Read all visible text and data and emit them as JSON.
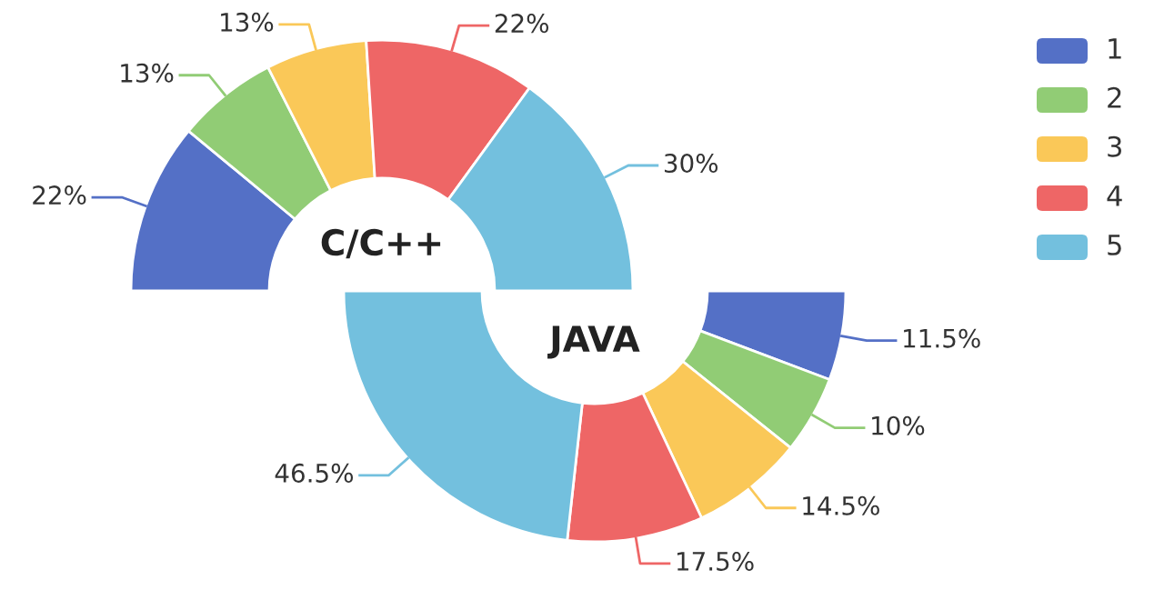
{
  "chart_data": [
    {
      "type": "donut",
      "title": "C/C++",
      "categories": [
        "1",
        "2",
        "3",
        "4",
        "5"
      ],
      "values": [
        22,
        13,
        13,
        22,
        30
      ],
      "value_labels": [
        "22%",
        "13%",
        "13%",
        "22%",
        "30%"
      ],
      "colors": [
        "#5470c6",
        "#91cc75",
        "#fac858",
        "#ee6666",
        "#73c0de"
      ],
      "legend": "right"
    },
    {
      "type": "donut",
      "title": "JAVA",
      "categories": [
        null,
        null,
        null,
        null,
        null
      ],
      "values": [
        11.5,
        10,
        14.5,
        17.5,
        46.5
      ],
      "value_labels": [
        "11.5%",
        "10%",
        "14.5%",
        "17.5%",
        "46.5%"
      ],
      "colors": [
        "#5470c6",
        "#91cc75",
        "#fac858",
        "#ee6666",
        "#73c0de"
      ]
    }
  ]
}
